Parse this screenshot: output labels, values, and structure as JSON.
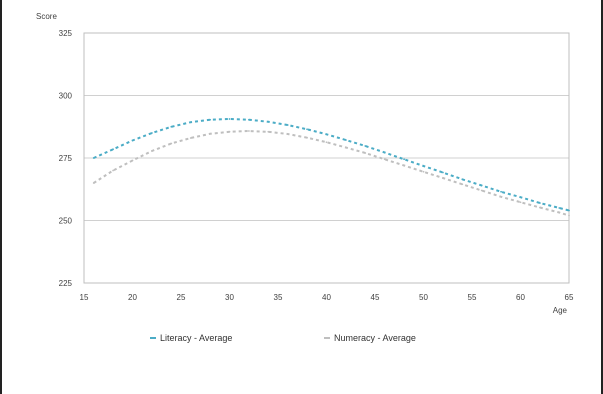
{
  "chart_data": {
    "type": "line",
    "title": "",
    "xlabel": "Age",
    "ylabel": "Score",
    "xlim": [
      15,
      65
    ],
    "ylim": [
      225,
      325
    ],
    "x_ticks": [
      15,
      20,
      25,
      30,
      35,
      40,
      45,
      50,
      55,
      60,
      65
    ],
    "y_ticks": [
      225,
      250,
      275,
      300,
      325
    ],
    "grid": "horizontal",
    "legend_position": "bottom",
    "series": [
      {
        "name": "Literacy - Average",
        "color": "#4bacc6",
        "x": [
          16,
          18,
          20,
          22,
          24,
          26,
          28,
          30,
          32,
          34,
          36,
          38,
          40,
          42,
          44,
          46,
          48,
          50,
          52,
          54,
          56,
          58,
          60,
          62,
          64,
          65
        ],
        "values": [
          275,
          278.5,
          282,
          285,
          287.5,
          289.3,
          290.3,
          290.6,
          290.3,
          289.5,
          288.2,
          286.5,
          284.5,
          282.2,
          279.8,
          277.2,
          274.5,
          271.8,
          269.2,
          266.5,
          264,
          261.5,
          259.3,
          257,
          255,
          254
        ]
      },
      {
        "name": "Numeracy - Average",
        "color": "#bfbfbf",
        "x": [
          16,
          18,
          20,
          22,
          24,
          26,
          28,
          30,
          32,
          34,
          36,
          38,
          40,
          42,
          44,
          46,
          48,
          50,
          52,
          54,
          56,
          58,
          60,
          62,
          64,
          65
        ],
        "values": [
          265,
          270,
          274,
          277.8,
          280.8,
          283,
          284.7,
          285.5,
          285.8,
          285.5,
          284.6,
          283.1,
          281.3,
          279.2,
          277,
          274.5,
          272,
          269.5,
          267,
          264.5,
          262,
          259.5,
          257.3,
          255.2,
          253.2,
          252
        ]
      }
    ]
  }
}
